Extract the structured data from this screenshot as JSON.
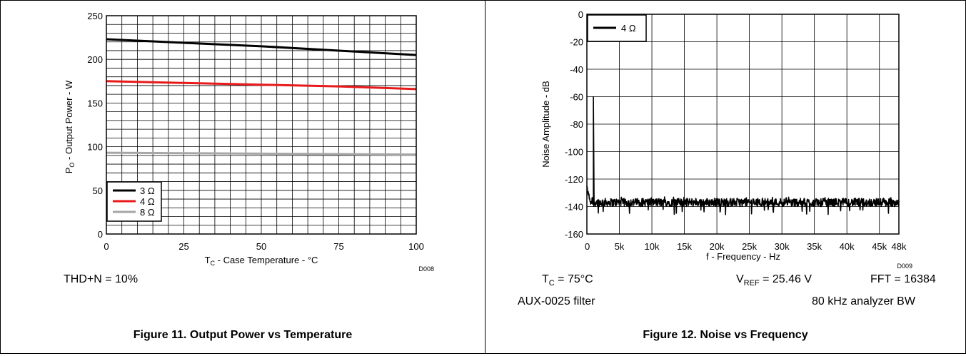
{
  "chart_data": [
    {
      "type": "line",
      "figure_id": "D008",
      "xlabel": {
        "main": "T",
        "sub": "C",
        "rest": " - Case Temperature - °C"
      },
      "ylabel": {
        "main": "P",
        "sub": "O",
        "rest": " - Output Power - W"
      },
      "xlim": [
        0,
        100
      ],
      "ylim": [
        0,
        250
      ],
      "xticks": [
        0,
        25,
        50,
        75,
        100
      ],
      "yticks": [
        0,
        50,
        100,
        150,
        200,
        250
      ],
      "grid": true,
      "legend_position": "bottom-left",
      "series": [
        {
          "name": "3 Ω",
          "color": "#000000",
          "x": [
            0,
            25,
            50,
            75,
            100
          ],
          "y": [
            223,
            219,
            215,
            210,
            205
          ]
        },
        {
          "name": "4 Ω",
          "color": "#e8191a",
          "x": [
            0,
            25,
            50,
            75,
            100
          ],
          "y": [
            175,
            173,
            171,
            169,
            166
          ]
        },
        {
          "name": "8 Ω",
          "color": "#a6a6a6",
          "x": [
            0,
            25,
            50,
            75,
            100
          ],
          "y": [
            93,
            92.5,
            92,
            91.5,
            91
          ]
        }
      ],
      "conditions": [
        "THD+N = 10%"
      ],
      "caption": "Figure 11. Output Power vs Temperature"
    },
    {
      "type": "line",
      "figure_id": "D009",
      "xlabel": "f - Frequency - Hz",
      "ylabel": "Noise Amplitude - dB",
      "xlim": [
        0,
        48000
      ],
      "ylim": [
        -160,
        0
      ],
      "xticks": [
        0,
        5000,
        10000,
        15000,
        20000,
        25000,
        30000,
        35000,
        40000,
        45000,
        48000
      ],
      "xtick_labels": [
        "0",
        "5k",
        "10k",
        "15k",
        "20k",
        "25k",
        "30k",
        "35k",
        "40k",
        "45k",
        "48k"
      ],
      "yticks": [
        0,
        -20,
        -40,
        -60,
        -80,
        -100,
        -120,
        -140,
        -160
      ],
      "grid": true,
      "legend_position": "top-left",
      "series": [
        {
          "name": "4 Ω",
          "color": "#000000",
          "noise_floor_db": -137,
          "noise_floor_range_db": [
            -146,
            -133
          ],
          "peaks": [
            {
              "x": 0,
              "y": -127
            },
            {
              "x": 1000,
              "y": -60
            }
          ]
        }
      ],
      "conditions": {
        "tc": {
          "main": "T",
          "sub": "C",
          "rest": " = 75°C"
        },
        "vref": {
          "main": "V",
          "sub": "REF",
          "rest": " = 25.46 V"
        },
        "fft": "FFT = 16384",
        "filter": "AUX-0025 filter",
        "bw": "80 kHz analyzer BW"
      },
      "caption": "Figure 12. Noise vs Frequency"
    }
  ]
}
